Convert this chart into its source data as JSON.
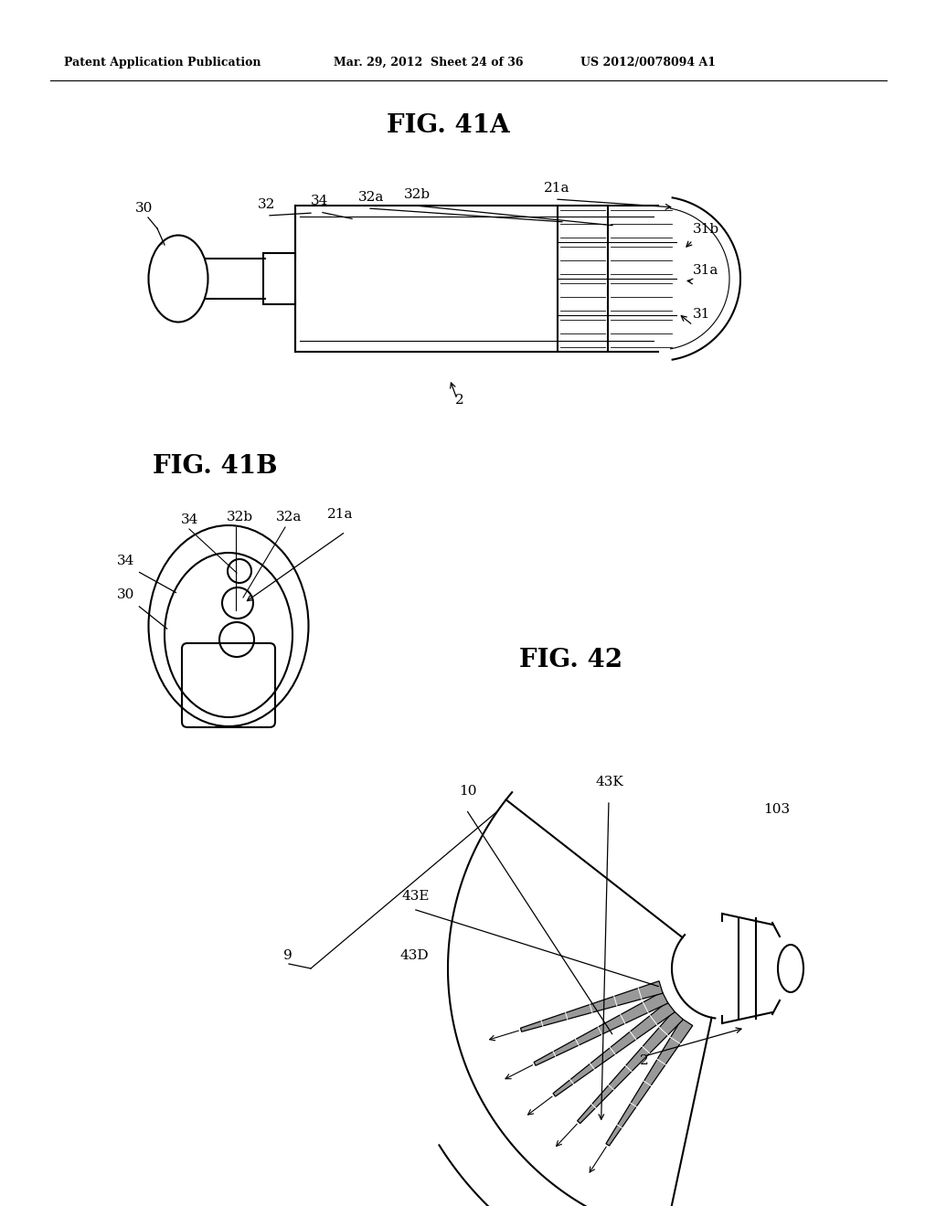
{
  "bg_color": "#ffffff",
  "header_left": "Patent Application Publication",
  "header_mid": "Mar. 29, 2012  Sheet 24 of 36",
  "header_right": "US 2012/0078094 A1",
  "fig41a_title": "FIG. 41A",
  "fig41b_title": "FIG. 41B",
  "fig42_title": "FIG. 42",
  "lc": "#000000",
  "lw": 1.5,
  "tlw": 0.8
}
